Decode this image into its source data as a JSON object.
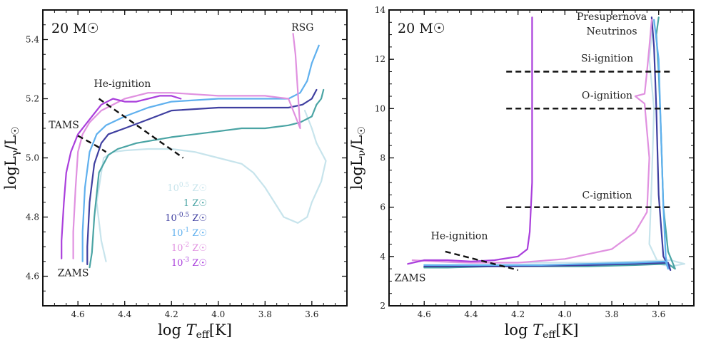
{
  "chart_data": [
    {
      "type": "line",
      "panel": "left",
      "title": "20 M☉",
      "xlabel": "log T_eff[K]",
      "ylabel": "log L_γ/L☉",
      "xlim": [
        4.75,
        3.45
      ],
      "ylim": [
        4.5,
        5.5
      ],
      "xticks": [
        4.6,
        4.4,
        4.2,
        4.0,
        3.8,
        3.6
      ],
      "xtick_labels": [
        "4.6",
        "4.4",
        "4.2",
        "4.0",
        "3.8",
        "3.6"
      ],
      "yticks": [
        4.6,
        4.8,
        5.0,
        5.2,
        5.4
      ],
      "ytick_labels": [
        "4.6",
        "4.8",
        "5.0",
        "5.2",
        "5.4"
      ],
      "annotations": [
        {
          "text": "TAMS",
          "x": 4.66,
          "y": 5.1
        },
        {
          "text": "ZAMS",
          "x": 4.62,
          "y": 4.6
        },
        {
          "text": "RSG",
          "x": 3.64,
          "y": 5.43
        },
        {
          "text": "He-ignition",
          "x": 4.41,
          "y": 5.24
        }
      ],
      "lines": [
        {
          "name": "TAMS-line",
          "style": "dashed",
          "color": "#111111",
          "x": [
            4.6,
            4.52,
            4.48
          ],
          "y": [
            5.075,
            5.04,
            5.02
          ]
        },
        {
          "name": "He-ignition-line",
          "style": "dashed",
          "color": "#111111",
          "x": [
            4.51,
            4.15
          ],
          "y": [
            5.2,
            5.0
          ]
        }
      ],
      "legend": [
        {
          "label": "10^0.5 Z☉",
          "color": "#c7e4ec"
        },
        {
          "label": "1 Z☉",
          "color": "#4aa4a4"
        },
        {
          "label": "10^-0.5 Z☉",
          "color": "#3f3fa0"
        },
        {
          "label": "10^-1 Z☉",
          "color": "#5fb0ee"
        },
        {
          "label": "10^-2 Z☉",
          "color": "#e091e0"
        },
        {
          "label": "10^-3 Z☉",
          "color": "#aa3fdc"
        }
      ],
      "legend_position": "center",
      "series": [
        {
          "name": "Z=10^0.5",
          "color": "#c7e4ec",
          "x": [
            4.48,
            4.5,
            4.52,
            4.5,
            4.49,
            4.45,
            4.4,
            4.3,
            4.2,
            4.1,
            4.0,
            3.9,
            3.85,
            3.8,
            3.72,
            3.66,
            3.62,
            3.6,
            3.56,
            3.54,
            3.58,
            3.6,
            3.62,
            3.63
          ],
          "y": [
            4.65,
            4.72,
            4.85,
            4.95,
            5.0,
            5.02,
            5.025,
            5.03,
            5.03,
            5.02,
            5.0,
            4.98,
            4.95,
            4.9,
            4.8,
            4.78,
            4.8,
            4.85,
            4.92,
            4.99,
            5.05,
            5.1,
            5.14,
            5.16
          ]
        },
        {
          "name": "Z=1",
          "color": "#4aa4a4",
          "x": [
            4.55,
            4.54,
            4.53,
            4.51,
            4.47,
            4.43,
            4.35,
            4.2,
            4.0,
            3.9,
            3.8,
            3.7,
            3.65,
            3.6,
            3.58,
            3.56,
            3.55
          ],
          "y": [
            4.63,
            4.68,
            4.8,
            4.95,
            5.01,
            5.03,
            5.05,
            5.07,
            5.09,
            5.1,
            5.1,
            5.11,
            5.12,
            5.14,
            5.18,
            5.2,
            5.23
          ]
        },
        {
          "name": "Z=10^-0.5",
          "color": "#3f3fa0",
          "x": [
            4.56,
            4.56,
            4.55,
            4.53,
            4.5,
            4.47,
            4.4,
            4.3,
            4.2,
            4.0,
            3.8,
            3.7,
            3.64,
            3.6,
            3.58
          ],
          "y": [
            4.64,
            4.7,
            4.85,
            4.98,
            5.05,
            5.08,
            5.1,
            5.13,
            5.16,
            5.17,
            5.17,
            5.17,
            5.18,
            5.2,
            5.23
          ]
        },
        {
          "name": "Z=10^-1",
          "color": "#5fb0ee",
          "x": [
            4.58,
            4.58,
            4.57,
            4.55,
            4.52,
            4.48,
            4.4,
            4.3,
            4.2,
            4.0,
            3.8,
            3.7,
            3.65,
            3.62,
            3.6,
            3.57
          ],
          "y": [
            4.65,
            4.75,
            4.9,
            5.02,
            5.08,
            5.11,
            5.14,
            5.17,
            5.19,
            5.2,
            5.2,
            5.2,
            5.22,
            5.26,
            5.32,
            5.38
          ]
        },
        {
          "name": "Z=10^-2",
          "color": "#e091e0",
          "x": [
            4.62,
            4.62,
            4.61,
            4.6,
            4.58,
            4.55,
            4.5,
            4.4,
            4.3,
            4.2,
            4.0,
            3.8,
            3.7,
            3.65,
            3.67,
            3.68
          ],
          "y": [
            4.66,
            4.75,
            4.9,
            5.02,
            5.08,
            5.12,
            5.16,
            5.2,
            5.22,
            5.22,
            5.21,
            5.21,
            5.2,
            5.1,
            5.35,
            5.42
          ]
        },
        {
          "name": "Z=10^-3",
          "color": "#aa3fdc",
          "x": [
            4.67,
            4.67,
            4.66,
            4.65,
            4.63,
            4.6,
            4.55,
            4.5,
            4.45,
            4.4,
            4.35,
            4.3,
            4.25,
            4.2,
            4.16
          ],
          "y": [
            4.66,
            4.72,
            4.85,
            4.95,
            5.02,
            5.08,
            5.13,
            5.18,
            5.2,
            5.19,
            5.19,
            5.2,
            5.21,
            5.21,
            5.2
          ]
        }
      ]
    },
    {
      "type": "line",
      "panel": "right",
      "title": "20 M☉",
      "xlabel": "log T_eff[K]",
      "ylabel": "log L_ν/L☉",
      "xlim": [
        4.75,
        3.45
      ],
      "ylim": [
        2,
        14
      ],
      "xticks": [
        4.6,
        4.4,
        4.2,
        4.0,
        3.8,
        3.6
      ],
      "xtick_labels": [
        "4.6",
        "4.4",
        "4.2",
        "4.0",
        "3.8",
        "3.6"
      ],
      "yticks": [
        2,
        4,
        6,
        8,
        10,
        12,
        14
      ],
      "ytick_labels": [
        "2",
        "4",
        "6",
        "8",
        "10",
        "12",
        "14"
      ],
      "annotations": [
        {
          "text": "Presupernova",
          "x": 3.8,
          "y": 13.6
        },
        {
          "text": "Neutrinos",
          "x": 3.8,
          "y": 13.0
        },
        {
          "text": "Si-ignition",
          "x": 3.82,
          "y": 11.9
        },
        {
          "text": "O-ignition",
          "x": 3.82,
          "y": 10.4
        },
        {
          "text": "C-ignition",
          "x": 3.82,
          "y": 6.35
        },
        {
          "text": "He-ignition",
          "x": 4.45,
          "y": 4.7
        },
        {
          "text": "ZAMS",
          "x": 4.66,
          "y": 3.0
        }
      ],
      "lines": [
        {
          "name": "Si-ignition-line",
          "style": "dashed",
          "color": "#111111",
          "x": [
            4.25,
            3.55
          ],
          "y": [
            11.5,
            11.5
          ]
        },
        {
          "name": "O-ignition-line",
          "style": "dashed",
          "color": "#111111",
          "x": [
            4.25,
            3.55
          ],
          "y": [
            10.0,
            10.0
          ]
        },
        {
          "name": "C-ignition-line",
          "style": "dashed",
          "color": "#111111",
          "x": [
            4.25,
            3.55
          ],
          "y": [
            6.0,
            6.0
          ]
        },
        {
          "name": "He-ignition-line",
          "style": "dashed",
          "color": "#111111",
          "x": [
            4.51,
            4.2
          ],
          "y": [
            4.2,
            3.45
          ]
        }
      ],
      "series": [
        {
          "name": "Z=10^0.5",
          "color": "#c7e4ec",
          "x": [
            4.55,
            4.45,
            4.3,
            4.1,
            3.9,
            3.7,
            3.55,
            3.49,
            3.55,
            3.6,
            3.64,
            3.63,
            3.62,
            3.64,
            3.63,
            3.62
          ],
          "y": [
            3.8,
            3.75,
            3.75,
            3.75,
            3.75,
            3.8,
            3.85,
            3.7,
            3.6,
            3.7,
            4.5,
            7.0,
            10.0,
            12.0,
            13.0,
            13.6
          ]
        },
        {
          "name": "Z=1",
          "color": "#4aa4a4",
          "x": [
            4.6,
            4.5,
            4.3,
            4.1,
            3.9,
            3.7,
            3.56,
            3.53,
            3.56,
            3.58,
            3.59,
            3.6,
            3.61,
            3.6
          ],
          "y": [
            3.55,
            3.55,
            3.6,
            3.6,
            3.6,
            3.65,
            3.7,
            3.5,
            4.2,
            6.0,
            9.0,
            11.5,
            13.0,
            13.7
          ]
        },
        {
          "name": "Z=10^-0.5",
          "color": "#3f3fa0",
          "x": [
            4.6,
            4.5,
            4.3,
            4.1,
            3.9,
            3.7,
            3.56,
            3.55,
            3.58,
            3.6,
            3.61,
            3.62,
            3.63
          ],
          "y": [
            3.6,
            3.6,
            3.6,
            3.62,
            3.65,
            3.7,
            3.75,
            3.45,
            4.0,
            6.5,
            10.0,
            12.5,
            13.7
          ]
        },
        {
          "name": "Z=10^-1",
          "color": "#5fb0ee",
          "x": [
            4.6,
            4.5,
            4.3,
            4.1,
            3.9,
            3.7,
            3.57,
            3.56,
            3.57,
            3.58,
            3.59,
            3.6,
            3.62
          ],
          "y": [
            3.65,
            3.65,
            3.65,
            3.65,
            3.7,
            3.75,
            3.8,
            3.5,
            4.0,
            6.0,
            9.0,
            12.0,
            13.6
          ]
        },
        {
          "name": "Z=10^-2",
          "color": "#e091e0",
          "x": [
            4.65,
            4.55,
            4.4,
            4.2,
            4.0,
            3.8,
            3.7,
            3.65,
            3.64,
            3.66,
            3.7,
            3.66,
            3.65,
            3.64,
            3.63
          ],
          "y": [
            3.85,
            3.8,
            3.75,
            3.75,
            3.9,
            4.3,
            5.0,
            5.8,
            8.0,
            10.2,
            10.5,
            10.6,
            11.5,
            12.5,
            13.6
          ]
        },
        {
          "name": "Z=10^-3",
          "color": "#aa3fdc",
          "x": [
            4.67,
            4.6,
            4.5,
            4.4,
            4.3,
            4.2,
            4.16,
            4.15,
            4.14,
            4.14,
            4.14,
            4.14
          ],
          "y": [
            3.7,
            3.85,
            3.85,
            3.8,
            3.85,
            4.0,
            4.3,
            5.0,
            7.0,
            10.0,
            12.0,
            13.7
          ]
        }
      ]
    }
  ]
}
